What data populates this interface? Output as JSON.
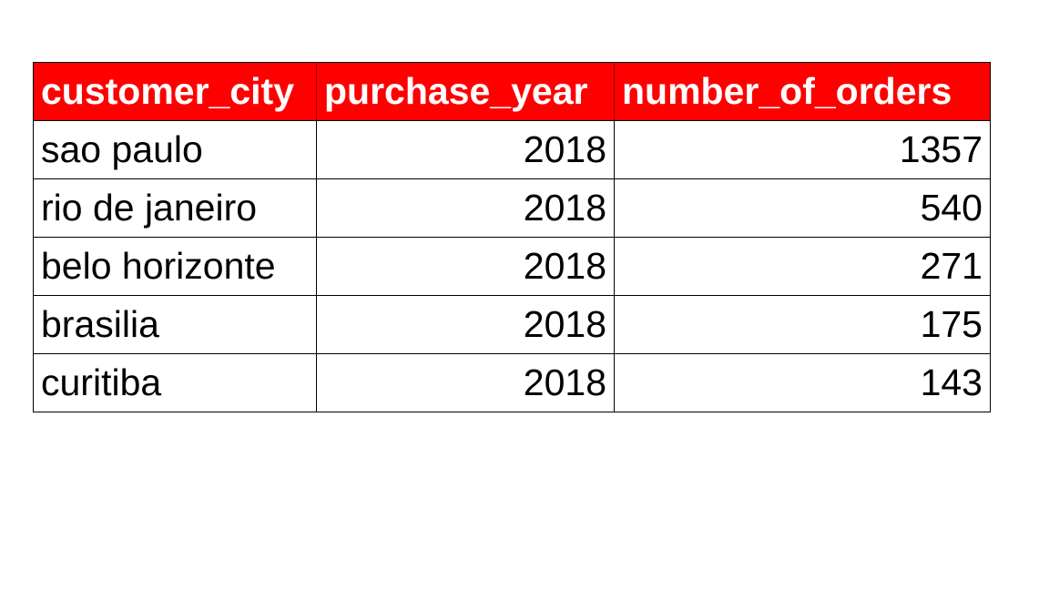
{
  "table": {
    "columns": [
      "customer_city",
      "purchase_year",
      "number_of_orders"
    ],
    "rows": [
      {
        "customer_city": "sao paulo",
        "purchase_year": "2018",
        "number_of_orders": "1357"
      },
      {
        "customer_city": "rio de janeiro",
        "purchase_year": "2018",
        "number_of_orders": "540"
      },
      {
        "customer_city": "belo horizonte",
        "purchase_year": "2018",
        "number_of_orders": "271"
      },
      {
        "customer_city": "brasilia",
        "purchase_year": "2018",
        "number_of_orders": "175"
      },
      {
        "customer_city": "curitiba",
        "purchase_year": "2018",
        "number_of_orders": "143"
      }
    ],
    "header_color": "#ff0000",
    "header_text_color": "#ffffff"
  }
}
